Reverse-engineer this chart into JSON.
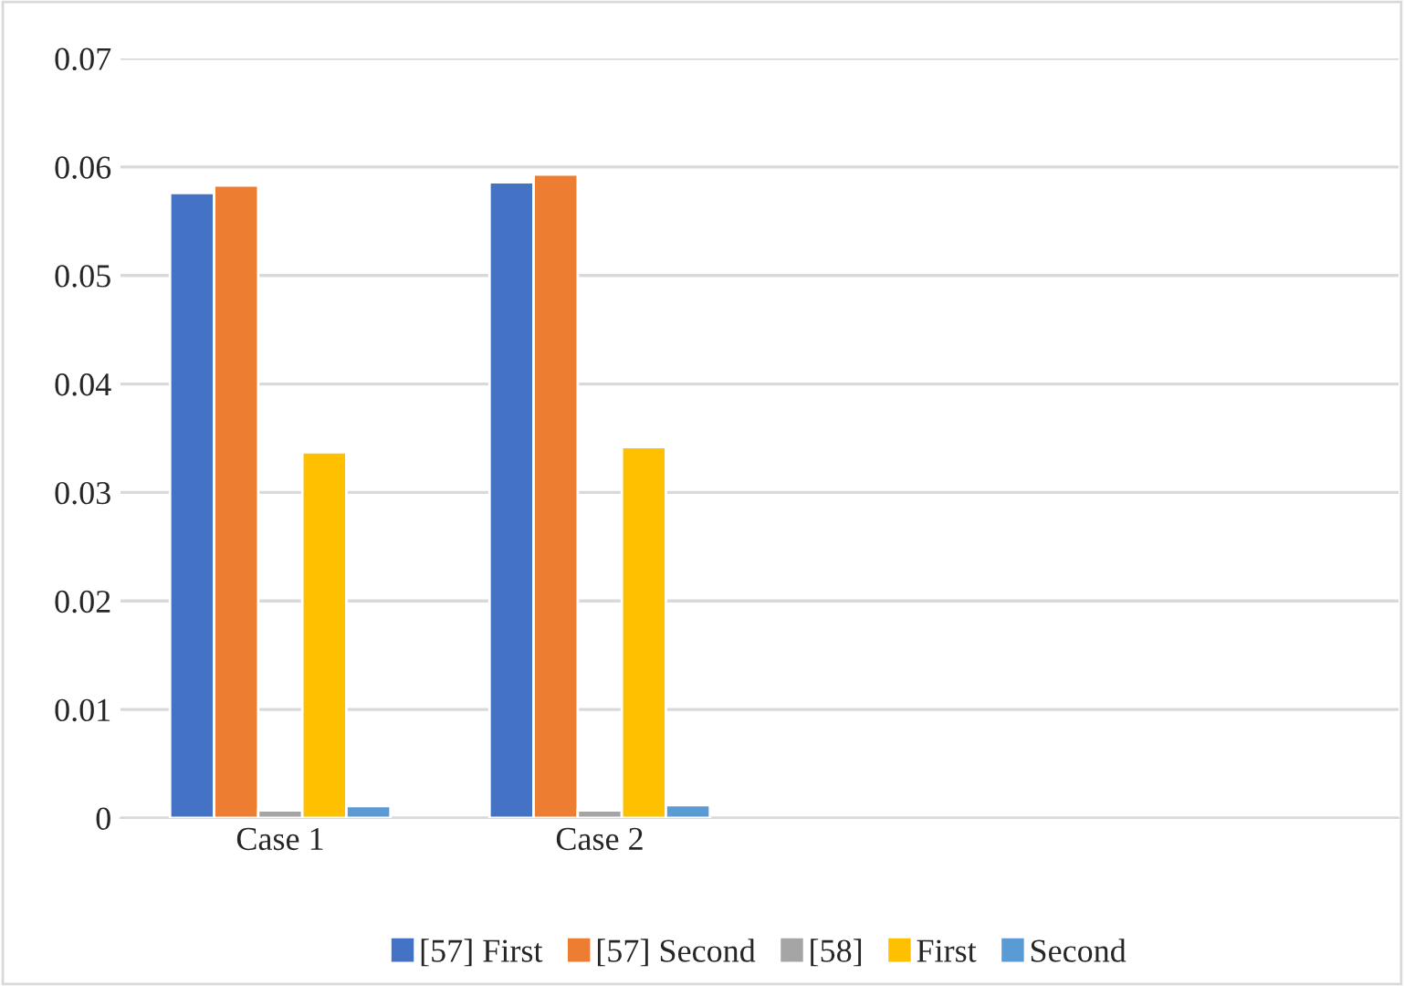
{
  "chart_data": {
    "type": "bar",
    "categories": [
      "Case 1",
      "Case 2",
      null,
      null
    ],
    "series": [
      {
        "name": "[57] First",
        "color": "#4472c4",
        "values": [
          0.0576,
          0.0586,
          null,
          null
        ]
      },
      {
        "name": "[57] Second",
        "color": "#ed7d31",
        "values": [
          0.0583,
          0.0593,
          null,
          null
        ]
      },
      {
        "name": "[58]",
        "color": "#a5a5a5",
        "values": [
          0.0007,
          0.0007,
          null,
          null
        ]
      },
      {
        "name": "First",
        "color": "#ffc000",
        "values": [
          0.0337,
          0.0342,
          null,
          null
        ]
      },
      {
        "name": "Second",
        "color": "#5b9bd5",
        "values": [
          0.0011,
          0.0012,
          null,
          null
        ]
      }
    ],
    "ylim": [
      0,
      0.07
    ],
    "yticks": [
      {
        "value": 0,
        "label": "0"
      },
      0.01,
      0.02,
      0.03,
      0.04,
      0.05,
      0.06,
      0.07
    ],
    "grid": "y",
    "legend": "bottom"
  }
}
